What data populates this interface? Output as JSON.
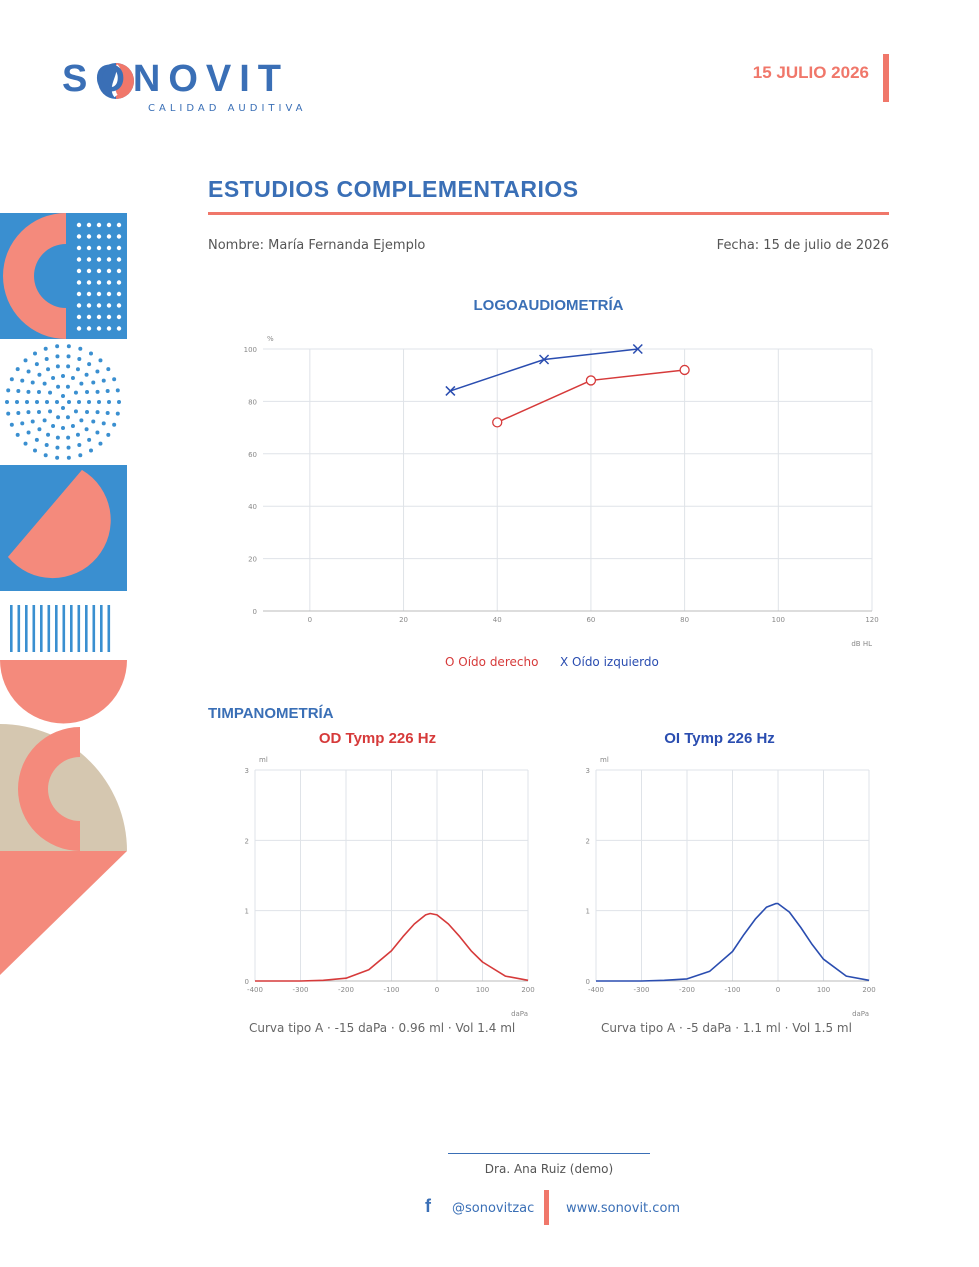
{
  "brand": {
    "name": "SONOVIT",
    "tagline": "CALIDAD AUDITIVA",
    "colors": {
      "blue": "#3a6fb6",
      "coral": "#f0776a",
      "beige": "#d5c7b0",
      "dark_blue": "#2a4db0",
      "red": "#d63a3a"
    }
  },
  "header": {
    "date": "15 JULIO 2026"
  },
  "document": {
    "title": "ESTUDIOS COMPLEMENTARIOS",
    "patient_label": "Nombre: María Fernanda Ejemplo",
    "date_label": "Fecha: 15 de julio de 2026"
  },
  "logo_section": {
    "title": "LOGOAUDIOMETRÍA",
    "legend_right": "O  Oído derecho",
    "legend_left": "X  Oído izquierdo"
  },
  "tymp_section": {
    "title": "TIMPANOMETRÍA",
    "od_title": "OD Tymp 226 Hz",
    "oi_title": "OI Tymp 226 Hz",
    "od_summary": "Curva tipo A  ·  -15 daPa  ·  0.96 ml  ·  Vol 1.4 ml",
    "oi_summary": "Curva tipo A  ·  -5 daPa  ·  1.1 ml  ·  Vol 1.5 ml"
  },
  "chart_data": [
    {
      "type": "line",
      "title": "LOGOAUDIOMETRÍA",
      "xlabel": "dB HL",
      "ylabel": "%",
      "xlim": [
        -10,
        120
      ],
      "ylim": [
        0,
        100
      ],
      "xticks": [
        0,
        20,
        40,
        60,
        80,
        100,
        120
      ],
      "yticks": [
        0,
        20,
        40,
        60,
        80,
        100
      ],
      "grid": true,
      "legend": "bottom",
      "series": [
        {
          "name": "Oído derecho",
          "marker": "O",
          "color": "#d63a3a",
          "x": [
            40,
            60,
            80
          ],
          "y": [
            72,
            88,
            92
          ]
        },
        {
          "name": "Oído izquierdo",
          "marker": "X",
          "color": "#2a4db0",
          "x": [
            30,
            50,
            70
          ],
          "y": [
            84,
            96,
            100
          ]
        }
      ]
    },
    {
      "type": "line",
      "title": "OD Tymp 226 Hz",
      "xlabel": "daPa",
      "ylabel": "ml",
      "xlim": [
        -400,
        200
      ],
      "ylim": [
        0,
        3
      ],
      "xticks": [
        -400,
        -300,
        -200,
        -100,
        0,
        100,
        200
      ],
      "yticks": [
        0,
        1,
        2,
        3
      ],
      "grid": true,
      "series": [
        {
          "color": "#d63a3a",
          "x": [
            -400,
            -300,
            -250,
            -200,
            -150,
            -100,
            -75,
            -50,
            -25,
            -15,
            0,
            25,
            50,
            75,
            100,
            150,
            200
          ],
          "y": [
            0,
            0,
            0.01,
            0.04,
            0.16,
            0.43,
            0.63,
            0.81,
            0.94,
            0.96,
            0.94,
            0.81,
            0.63,
            0.43,
            0.27,
            0.07,
            0.01
          ]
        }
      ]
    },
    {
      "type": "line",
      "title": "OI Tymp 226 Hz",
      "xlabel": "daPa",
      "ylabel": "ml",
      "xlim": [
        -400,
        200
      ],
      "ylim": [
        0,
        3
      ],
      "xticks": [
        -400,
        -300,
        -200,
        -100,
        0,
        100,
        200
      ],
      "yticks": [
        0,
        1,
        2,
        3
      ],
      "grid": true,
      "series": [
        {
          "color": "#2a4db0",
          "x": [
            -400,
            -300,
            -250,
            -200,
            -150,
            -100,
            -75,
            -50,
            -25,
            -5,
            0,
            25,
            50,
            75,
            100,
            150,
            200
          ],
          "y": [
            0,
            0,
            0.01,
            0.03,
            0.14,
            0.42,
            0.66,
            0.88,
            1.05,
            1.1,
            1.1,
            0.98,
            0.76,
            0.52,
            0.31,
            0.07,
            0.01
          ]
        }
      ]
    }
  ],
  "footer": {
    "doctor": "Dra. Ana Ruiz (demo)",
    "social_icon": "f",
    "social": "@sonovitzac",
    "website": "www.sonovit.com"
  }
}
